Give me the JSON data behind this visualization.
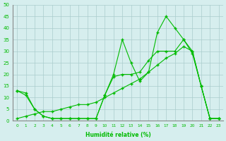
{
  "xlabel": "Humidité relative (%)",
  "x": [
    0,
    1,
    2,
    3,
    4,
    5,
    6,
    7,
    8,
    9,
    10,
    11,
    12,
    13,
    14,
    15,
    16,
    17,
    18,
    19,
    20,
    21,
    22,
    23
  ],
  "series1": [
    13,
    12,
    5,
    2,
    1,
    1,
    1,
    1,
    1,
    1,
    11,
    20,
    35,
    25,
    17,
    21,
    38,
    45,
    40,
    35,
    30,
    15,
    1,
    1
  ],
  "series2": [
    13,
    11,
    5,
    2,
    1,
    1,
    1,
    1,
    1,
    1,
    11,
    19,
    20,
    20,
    21,
    26,
    30,
    30,
    30,
    35,
    29,
    15,
    1,
    1
  ],
  "series3": [
    1,
    2,
    3,
    4,
    4,
    5,
    6,
    7,
    7,
    8,
    10,
    12,
    14,
    16,
    18,
    21,
    24,
    27,
    29,
    32,
    30,
    15,
    1,
    1
  ],
  "bg_color": "#d6eeee",
  "grid_color": "#aacccc",
  "line_color": "#00bb00",
  "ylim": [
    0,
    50
  ],
  "xlim": [
    -0.5,
    23.5
  ],
  "yticks": [
    0,
    5,
    10,
    15,
    20,
    25,
    30,
    35,
    40,
    45,
    50
  ],
  "xticks": [
    0,
    1,
    2,
    3,
    4,
    5,
    6,
    7,
    8,
    9,
    10,
    11,
    12,
    13,
    14,
    15,
    16,
    17,
    18,
    19,
    20,
    21,
    22,
    23
  ]
}
